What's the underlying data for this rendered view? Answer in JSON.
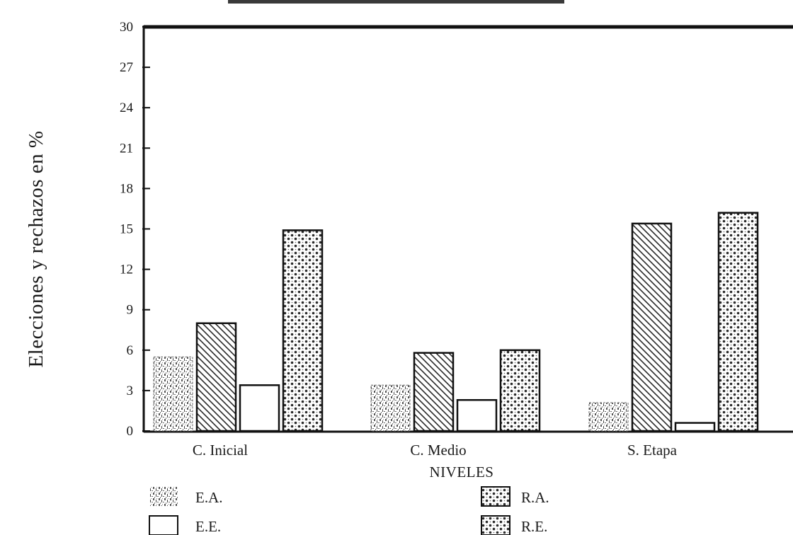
{
  "chart_data": {
    "type": "bar",
    "title": "",
    "xlabel": "NIVELES",
    "ylabel": "Elecciones y rechazos en %",
    "ylim": [
      0,
      30
    ],
    "yticks": [
      "0",
      "3",
      "6",
      "9",
      "12",
      "15",
      "18",
      "21",
      "24",
      "27",
      "30"
    ],
    "categories": [
      "C. Inicial",
      "C. Medio",
      "S. Etapa"
    ],
    "series": [
      {
        "name": "E.A.",
        "values": [
          5.5,
          3.4,
          2.1
        ]
      },
      {
        "name": "R.A.",
        "values": [
          8.0,
          5.8,
          15.4
        ]
      },
      {
        "name": "E.E.",
        "values": [
          3.4,
          2.3,
          0.6
        ]
      },
      {
        "name": "R.E.",
        "values": [
          14.9,
          6.0,
          16.2
        ]
      }
    ],
    "legend_placement": "bottom",
    "grid": false
  }
}
